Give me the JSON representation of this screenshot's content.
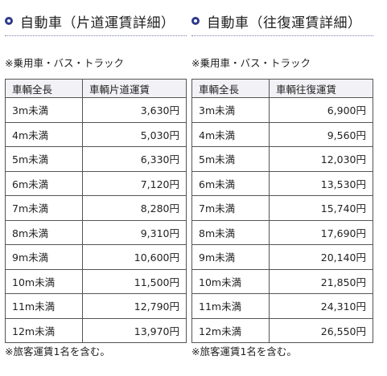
{
  "one_way": {
    "title": "自動車（片道運賃詳細）",
    "note_top": "※乗用車・バス・トラック",
    "col1_header": "車輌全長",
    "col2_header": "車輌片道運賃",
    "rows": [
      {
        "length": "3m未満",
        "fare": "3,630円"
      },
      {
        "length": "4m未満",
        "fare": "5,030円"
      },
      {
        "length": "5m未満",
        "fare": "6,330円"
      },
      {
        "length": "6m未満",
        "fare": "7,120円"
      },
      {
        "length": "7m未満",
        "fare": "8,280円"
      },
      {
        "length": "8m未満",
        "fare": "9,310円"
      },
      {
        "length": "9m未満",
        "fare": "10,600円"
      },
      {
        "length": "10m未満",
        "fare": "11,500円"
      },
      {
        "length": "11m未満",
        "fare": "12,790円"
      },
      {
        "length": "12m未満",
        "fare": "13,970円"
      }
    ],
    "note_bottom": "※旅客運賃1名を含む。"
  },
  "round_trip": {
    "title": "自動車（往復運賃詳細）",
    "note_top": "※乗用車・バス・トラック",
    "col1_header": "車輌全長",
    "col2_header": "車輌往復運賃",
    "rows": [
      {
        "length": "3m未満",
        "fare": "6,900円"
      },
      {
        "length": "4m未満",
        "fare": "9,560円"
      },
      {
        "length": "5m未満",
        "fare": "12,030円"
      },
      {
        "length": "6m未満",
        "fare": "13,530円"
      },
      {
        "length": "7m未満",
        "fare": "15,740円"
      },
      {
        "length": "8m未満",
        "fare": "17,690円"
      },
      {
        "length": "9m未満",
        "fare": "20,140円"
      },
      {
        "length": "10m未満",
        "fare": "21,850円"
      },
      {
        "length": "11m未満",
        "fare": "24,310円"
      },
      {
        "length": "12m未満",
        "fare": "26,550円"
      }
    ],
    "note_bottom": "※旅客運賃1名を含む。"
  },
  "colors": {
    "bullet": "#2d3a8c",
    "header_bg": "#f2f2f6",
    "border": "#555555"
  }
}
